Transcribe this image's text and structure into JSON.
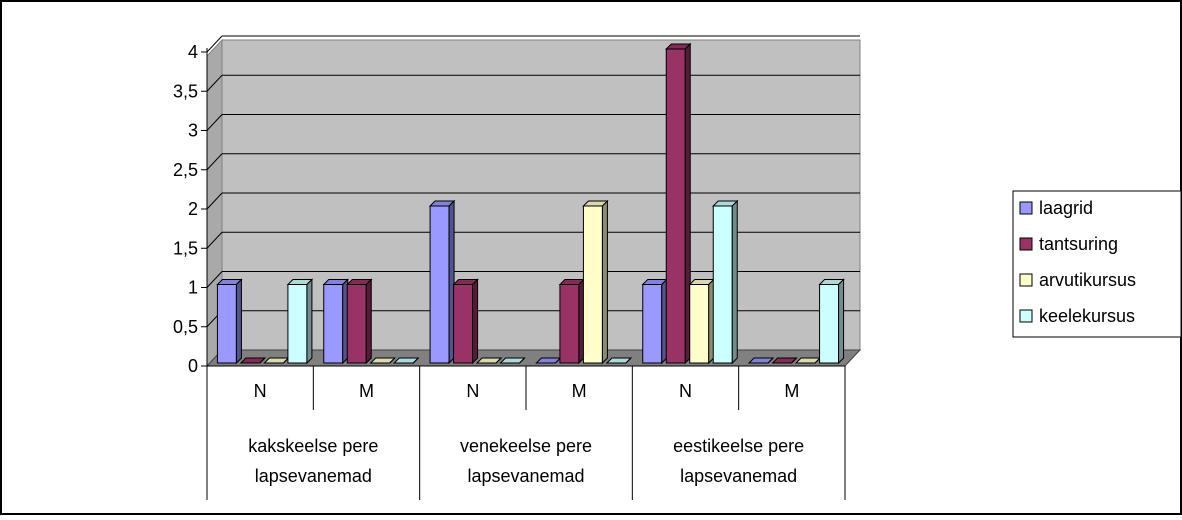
{
  "chart_data": {
    "type": "bar",
    "style": "3d-clustered-column",
    "title": "",
    "xlabel": "",
    "ylabel": "",
    "ylim": [
      0,
      4
    ],
    "ytick_step": 0.5,
    "ytick_labels": [
      "0",
      "0,5",
      "1",
      "1,5",
      "2",
      "2,5",
      "3",
      "3,5",
      "4"
    ],
    "grid": true,
    "legend_position": "right",
    "groups": [
      {
        "label_line1": "kakskeelse pere",
        "label_line2": "lapsevanemad",
        "subcategories": [
          "N",
          "M"
        ]
      },
      {
        "label_line1": "venekeelse pere",
        "label_line2": "lapsevanemad",
        "subcategories": [
          "N",
          "M"
        ]
      },
      {
        "label_line1": "eestikeelse pere",
        "label_line2": "lapsevanemad",
        "subcategories": [
          "N",
          "M"
        ]
      }
    ],
    "series": [
      {
        "name": "laagrid",
        "color": "#9999ff",
        "values": [
          1,
          1,
          2,
          0,
          1,
          0
        ]
      },
      {
        "name": "tantsuring",
        "color": "#993366",
        "values": [
          0,
          1,
          1,
          1,
          4,
          0
        ]
      },
      {
        "name": "arvutikursus",
        "color": "#ffffcc",
        "values": [
          0,
          0,
          0,
          2,
          1,
          0
        ]
      },
      {
        "name": "keelekursus",
        "color": "#ccffff",
        "values": [
          1,
          0,
          0,
          0,
          2,
          1
        ]
      }
    ],
    "wall_color": "#c0c0c0",
    "floor_color": "#808080"
  }
}
